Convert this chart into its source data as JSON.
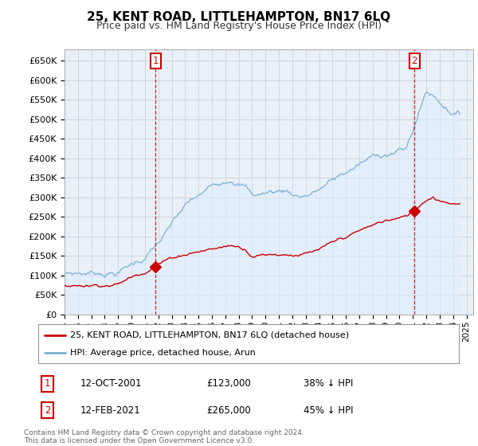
{
  "title": "25, KENT ROAD, LITTLEHAMPTON, BN17 6LQ",
  "subtitle": "Price paid vs. HM Land Registry's House Price Index (HPI)",
  "ylim": [
    0,
    680000
  ],
  "yticks": [
    0,
    50000,
    100000,
    150000,
    200000,
    250000,
    300000,
    350000,
    400000,
    450000,
    500000,
    550000,
    600000,
    650000
  ],
  "xlim_start": 1995.0,
  "xlim_end": 2025.5,
  "sale1_x": 2001.79,
  "sale1_y": 123000,
  "sale2_x": 2021.12,
  "sale2_y": 265000,
  "red_color": "#cc0000",
  "blue_color": "#7bafd4",
  "blue_fill_color": "#ddeeff",
  "annotation_box_color": "#cc0000",
  "background_color": "#ffffff",
  "grid_color": "#cccccc",
  "legend_line1": "25, KENT ROAD, LITTLEHAMPTON, BN17 6LQ (detached house)",
  "legend_line2": "HPI: Average price, detached house, Arun",
  "annotation1_date": "12-OCT-2001",
  "annotation1_price": "£123,000",
  "annotation1_hpi": "38% ↓ HPI",
  "annotation2_date": "12-FEB-2021",
  "annotation2_price": "£265,000",
  "annotation2_hpi": "45% ↓ HPI",
  "footer": "Contains HM Land Registry data © Crown copyright and database right 2024.\nThis data is licensed under the Open Government Licence v3.0."
}
